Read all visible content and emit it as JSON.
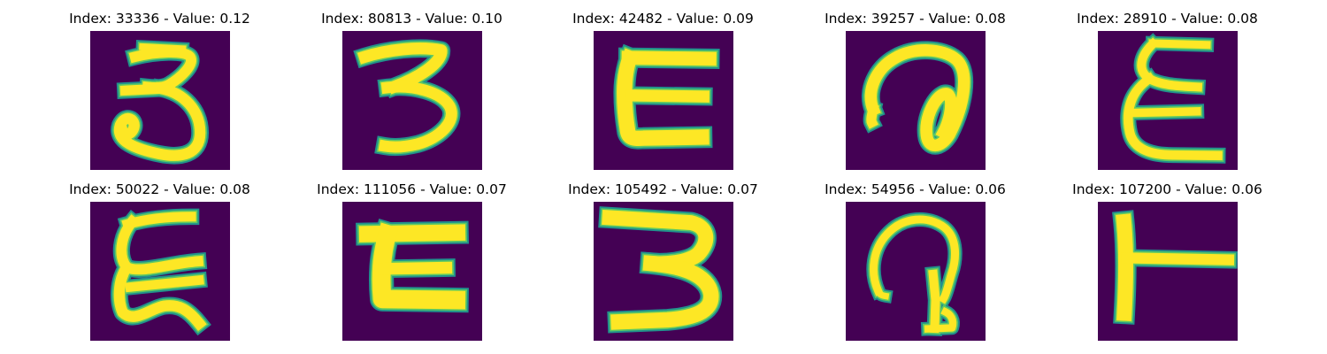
{
  "colors": {
    "background": "#440154",
    "foreground": "#fde725",
    "edge_mid": "#21918c",
    "edge_light": "#5ec962"
  },
  "panels": [
    {
      "title": "Index: 33336 - Value: 0.12",
      "glyph": "3-curly"
    },
    {
      "title": "Index: 80813 - Value: 0.10",
      "glyph": "3"
    },
    {
      "title": "Index: 42482 - Value: 0.09",
      "glyph": "c-bracket"
    },
    {
      "title": "Index: 39257 - Value: 0.08",
      "glyph": "loop"
    },
    {
      "title": "Index: 28910 - Value: 0.08",
      "glyph": "epsilon"
    },
    {
      "title": "Index: 50022 - Value: 0.08",
      "glyph": "epsilon-tall"
    },
    {
      "title": "Index: 111056 - Value: 0.07",
      "glyph": "bracket-thick"
    },
    {
      "title": "Index: 105492 - Value: 0.07",
      "glyph": "3-flat"
    },
    {
      "title": "Index: 54956 - Value: 0.06",
      "glyph": "hook"
    },
    {
      "title": "Index: 107200 - Value: 0.06",
      "glyph": "t-rotated"
    }
  ]
}
